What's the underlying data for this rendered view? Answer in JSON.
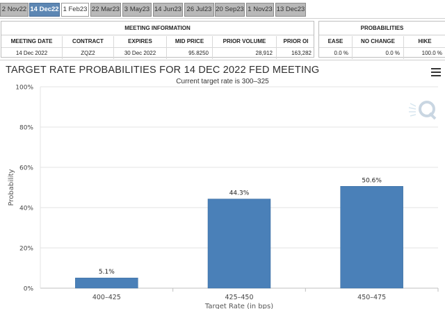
{
  "tabs": [
    {
      "label": "2 Nov22",
      "state": "normal"
    },
    {
      "label": "14 Dec22",
      "state": "active"
    },
    {
      "label": "1 Feb23",
      "state": "light"
    },
    {
      "label": "22 Mar23",
      "state": "normal"
    },
    {
      "label": "3 May23",
      "state": "normal"
    },
    {
      "label": "14 Jun23",
      "state": "normal"
    },
    {
      "label": "26 Jul23",
      "state": "normal"
    },
    {
      "label": "20 Sep23",
      "state": "normal"
    },
    {
      "label": "1 Nov23",
      "state": "normal"
    },
    {
      "label": "13 Dec23",
      "state": "normal"
    }
  ],
  "meeting_info": {
    "header": "MEETING INFORMATION",
    "columns": [
      "MEETING DATE",
      "CONTRACT",
      "EXPIRES",
      "MID PRICE",
      "PRIOR VOLUME",
      "PRIOR OI"
    ],
    "row": [
      "14 Dec 2022",
      "ZQZ2",
      "30 Dec 2022",
      "95.8250",
      "28,912",
      "163,282"
    ]
  },
  "probabilities": {
    "header": "PROBABILITIES",
    "columns": [
      "EASE",
      "NO CHANGE",
      "HIKE"
    ],
    "row": [
      "0.0 %",
      "0.0 %",
      "100.0 %"
    ]
  },
  "chart_header": {
    "title": "TARGET RATE PROBABILITIES FOR 14 DEC 2022 FED MEETING"
  },
  "chart_data": {
    "type": "bar",
    "title": "TARGET RATE PROBABILITIES FOR 14 DEC 2022 FED MEETING",
    "subtitle": "Current target rate is 300–325",
    "xlabel": "Target Rate (in bps)",
    "ylabel": "Probability",
    "categories": [
      "400–425",
      "425–450",
      "450–475"
    ],
    "values": [
      5.1,
      44.3,
      50.6
    ],
    "data_labels": [
      "5.1%",
      "44.3%",
      "50.6%"
    ],
    "ylim": [
      0,
      100
    ],
    "yticks": [
      "0%",
      "20%",
      "40%",
      "60%",
      "80%",
      "100%"
    ],
    "grid": true,
    "bar_color": "#4a80b8",
    "legend": "none"
  }
}
